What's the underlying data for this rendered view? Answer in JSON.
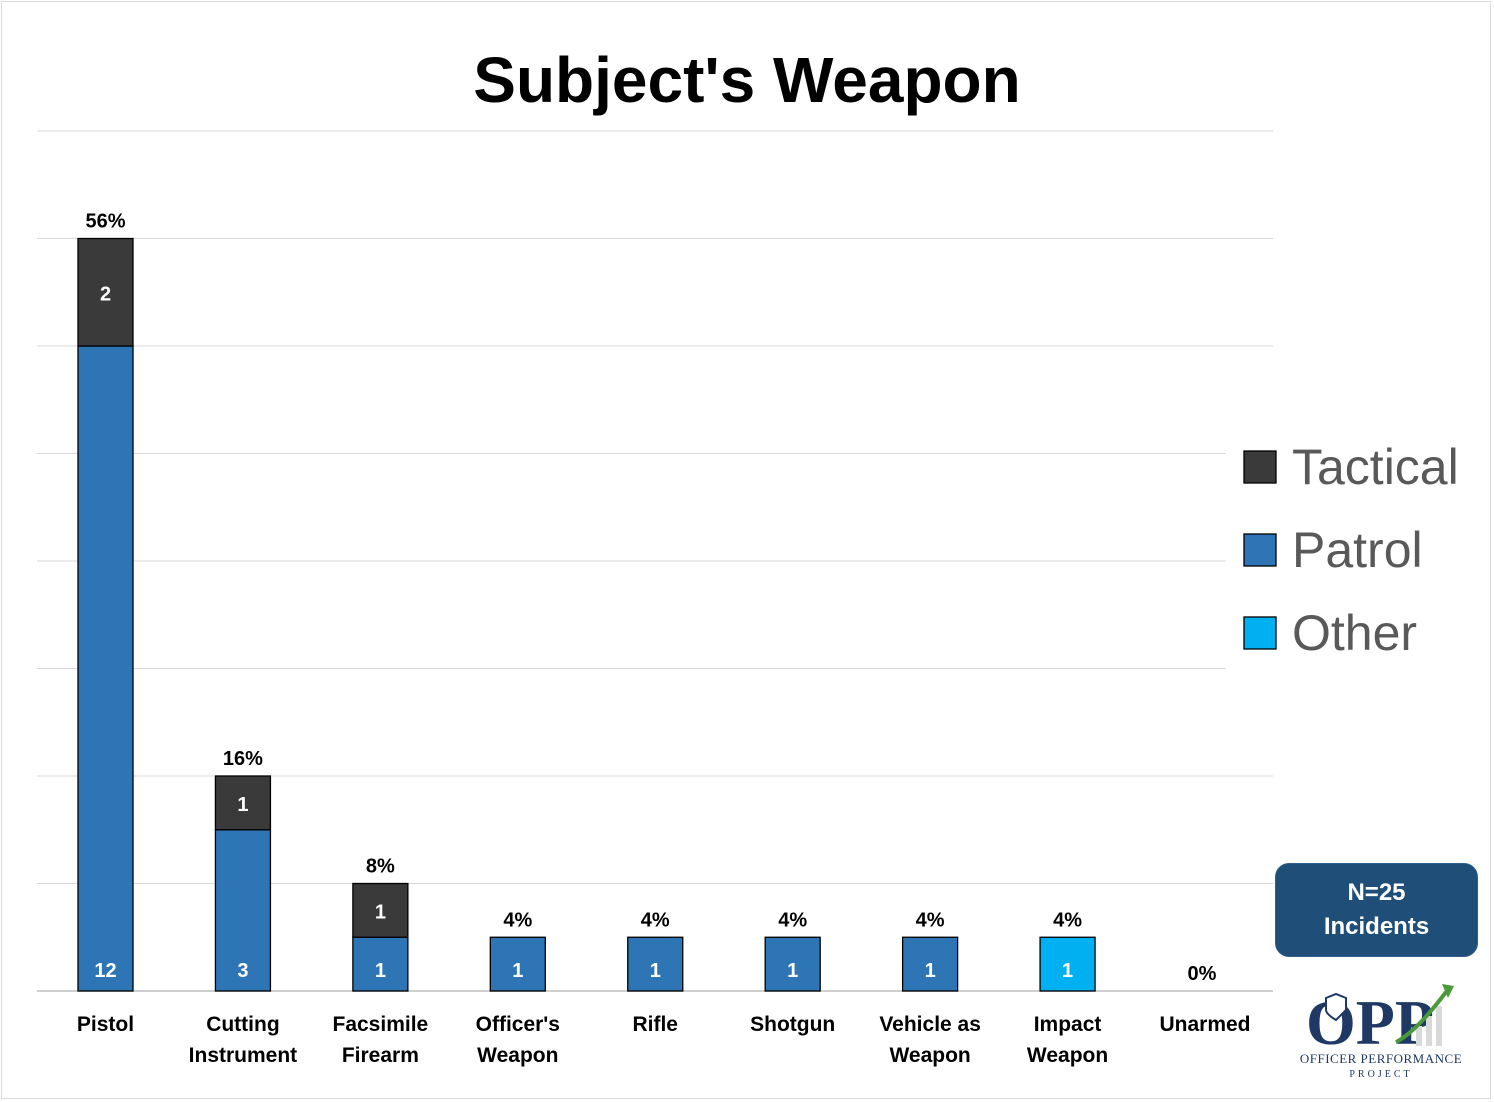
{
  "chart_data": {
    "type": "bar",
    "stacked": true,
    "title": "Subject's Weapon",
    "categories": [
      [
        "Pistol"
      ],
      [
        "Cutting",
        "Instrument"
      ],
      [
        "Facsimile",
        "Firearm"
      ],
      [
        "Officer's",
        "Weapon"
      ],
      [
        "Rifle"
      ],
      [
        "Shotgun"
      ],
      [
        "Vehicle as",
        "Weapon"
      ],
      [
        "Impact",
        "Weapon"
      ],
      [
        "Unarmed"
      ]
    ],
    "series": [
      {
        "name": "Other",
        "color": "#00b0f0",
        "values": [
          0,
          0,
          0,
          0,
          0,
          0,
          0,
          1,
          0
        ]
      },
      {
        "name": "Patrol",
        "color": "#2e75b6",
        "values": [
          12,
          3,
          1,
          1,
          1,
          1,
          1,
          0,
          0
        ]
      },
      {
        "name": "Tactical",
        "color": "#3a3a3a",
        "values": [
          2,
          1,
          1,
          0,
          0,
          0,
          0,
          0,
          0
        ]
      }
    ],
    "percent_labels": [
      "56%",
      "16%",
      "8%",
      "4%",
      "4%",
      "4%",
      "4%",
      "4%",
      "0%"
    ],
    "legend": {
      "placement": "right",
      "order": [
        "Tactical",
        "Patrol",
        "Other"
      ]
    },
    "ylim": [
      0,
      16
    ],
    "y_gridline_step": 2,
    "grid": true,
    "xlabel": "",
    "ylabel": ""
  },
  "annotation": {
    "line1": "N=25",
    "line2": "Incidents"
  },
  "logo": {
    "mark": "OPP",
    "name": "OFFICER PERFORMANCE",
    "subname": "PROJECT"
  }
}
